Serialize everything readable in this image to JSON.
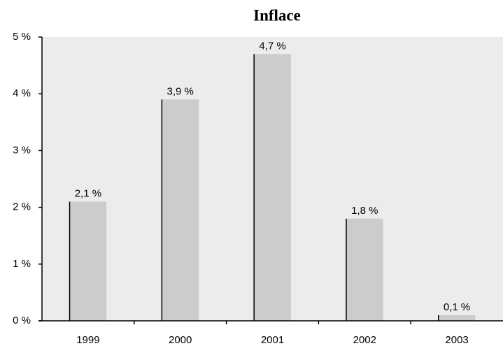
{
  "chart_data": {
    "type": "bar",
    "title": "Inflace",
    "categories": [
      "1999",
      "2000",
      "2001",
      "2002",
      "2003"
    ],
    "values": [
      2.1,
      3.9,
      4.7,
      1.8,
      0.1
    ],
    "value_labels": [
      "2,1 %",
      "3,9 %",
      "4,7 %",
      "1,8 %",
      "0,1 %"
    ],
    "color": "#cccccc",
    "ylim": [
      0,
      5
    ],
    "yticks": [
      {
        "value": 0,
        "label": "0 %"
      },
      {
        "value": 1,
        "label": "1 %"
      },
      {
        "value": 2,
        "label": "2 %"
      },
      {
        "value": 3,
        "label": "3 %"
      },
      {
        "value": 4,
        "label": "4 %"
      },
      {
        "value": 5,
        "label": "5 %"
      }
    ],
    "grid": false
  }
}
